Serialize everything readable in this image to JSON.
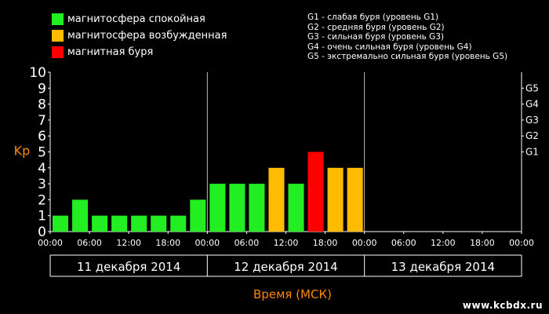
{
  "legend": [
    {
      "label": "магнитосфера спокойная",
      "color": "#22ee22"
    },
    {
      "label": "магнитосфера возбужденная",
      "color": "#ffbb00"
    },
    {
      "label": "магнитная буря",
      "color": "#ff0000"
    }
  ],
  "storm_levels": [
    "G1 - слабая буря (уровень G1)",
    "G2 - средняя буря (уровень G2)",
    "G3 - сильная буря (уровень G3)",
    "G4 - очень сильная буря (уровень G4)",
    "G5 - экстремально сильная буря (уровень G5)"
  ],
  "watermark": "www.kcbdx.ru",
  "chart_data": {
    "type": "bar",
    "ylabel": "Kp",
    "xlabel": "Время (МСК)",
    "ylim": [
      0,
      10
    ],
    "yticks": [
      "0",
      "1",
      "2",
      "3",
      "4",
      "5",
      "6",
      "7",
      "8",
      "9",
      "10"
    ],
    "right_ticks": [
      {
        "label": "G1",
        "value": 5
      },
      {
        "label": "G2",
        "value": 6
      },
      {
        "label": "G3",
        "value": 7
      },
      {
        "label": "G4",
        "value": 8
      },
      {
        "label": "G5",
        "value": 9
      }
    ],
    "time_ticks": [
      "00:00",
      "06:00",
      "12:00",
      "18:00",
      "00:00",
      "06:00",
      "12:00",
      "18:00",
      "00:00",
      "06:00",
      "12:00",
      "18:00",
      "00:00"
    ],
    "days": [
      "11 декабря 2014",
      "12 декабря 2014",
      "13 декабря 2014"
    ],
    "slots_per_day": 8,
    "values": [
      1,
      2,
      1,
      1,
      1,
      1,
      1,
      2,
      3,
      3,
      3,
      4,
      3,
      5,
      4,
      4
    ],
    "colors": [
      "#22ee22",
      "#22ee22",
      "#22ee22",
      "#22ee22",
      "#22ee22",
      "#22ee22",
      "#22ee22",
      "#22ee22",
      "#22ee22",
      "#22ee22",
      "#22ee22",
      "#ffbb00",
      "#22ee22",
      "#ff0000",
      "#ffbb00",
      "#ffbb00"
    ],
    "label_color": "#ff8800"
  }
}
